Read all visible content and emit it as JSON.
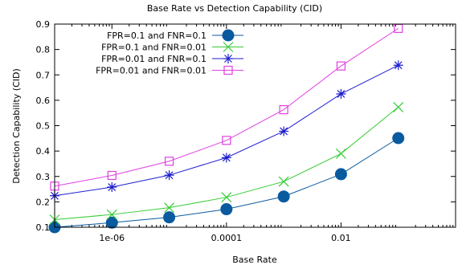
{
  "chart_data": {
    "type": "line",
    "title": "Base Rate vs Detection Capability (CID)",
    "xlabel": "Base Rate",
    "ylabel": "Detection Capability (CID)",
    "x_scale": "log",
    "xlim": [
      1e-07,
      1
    ],
    "ylim": [
      0.1,
      0.9
    ],
    "x_ticks": [
      {
        "value": 1e-06,
        "label": "1e-06"
      },
      {
        "value": 0.0001,
        "label": "0.0001"
      },
      {
        "value": 0.01,
        "label": "0.01"
      }
    ],
    "y_ticks": [
      {
        "value": 0.1,
        "label": "0.1"
      },
      {
        "value": 0.2,
        "label": "0.2"
      },
      {
        "value": 0.3,
        "label": "0.3"
      },
      {
        "value": 0.4,
        "label": "0.4"
      },
      {
        "value": 0.5,
        "label": "0.5"
      },
      {
        "value": 0.6,
        "label": "0.6"
      },
      {
        "value": 0.7,
        "label": "0.7"
      },
      {
        "value": 0.8,
        "label": "0.8"
      },
      {
        "value": 0.9,
        "label": "0.9"
      }
    ],
    "x": [
      1e-07,
      1e-06,
      1e-05,
      0.0001,
      0.001,
      0.01,
      0.1
    ],
    "legend_position": "top-left",
    "grid": false,
    "series": [
      {
        "name": "FPR=0.1 and FNR=0.1",
        "marker": "filled-circle",
        "color": "#0a5aa0",
        "values": [
          0.1,
          0.118,
          0.139,
          0.171,
          0.221,
          0.309,
          0.451
        ]
      },
      {
        "name": "FPR=0.1 and FNR=0.01",
        "marker": "cross",
        "color": "#33cc33",
        "values": [
          0.13,
          0.15,
          0.177,
          0.218,
          0.28,
          0.39,
          0.573
        ]
      },
      {
        "name": "FPR=0.01 and FNR=0.1",
        "marker": "star",
        "color": "#1f1fcf",
        "values": [
          0.224,
          0.258,
          0.305,
          0.374,
          0.478,
          0.625,
          0.738
        ]
      },
      {
        "name": "FPR=0.01 and FNR=0.01",
        "marker": "open-square",
        "color": "#e040e0",
        "values": [
          0.262,
          0.304,
          0.36,
          0.442,
          0.563,
          0.735,
          0.883
        ]
      }
    ]
  }
}
